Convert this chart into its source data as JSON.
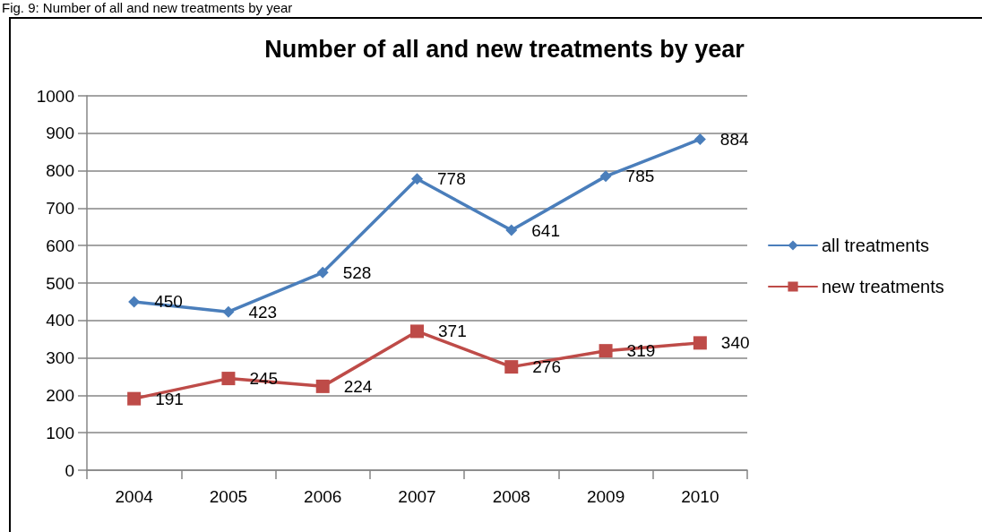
{
  "chart_data": {
    "type": "line",
    "title": "Number of all and new treatments by year",
    "annotations": [
      "Fig. 9: Number of all and new treatments by year"
    ],
    "categories": [
      "2004",
      "2005",
      "2006",
      "2007",
      "2008",
      "2009",
      "2010"
    ],
    "series": [
      {
        "name": "all treatments",
        "color": "#4a7ebb",
        "marker": "diamond",
        "values": [
          450,
          423,
          528,
          778,
          641,
          785,
          884
        ]
      },
      {
        "name": "new treatments",
        "color": "#be4b48",
        "marker": "square",
        "values": [
          191,
          245,
          224,
          371,
          276,
          319,
          340
        ]
      }
    ],
    "ylim": [
      0,
      1000
    ],
    "yticks": [
      0,
      100,
      200,
      300,
      400,
      500,
      600,
      700,
      800,
      900,
      1000
    ],
    "grid": "y",
    "legend": "right",
    "data_labels": true,
    "line_style": "solid"
  }
}
